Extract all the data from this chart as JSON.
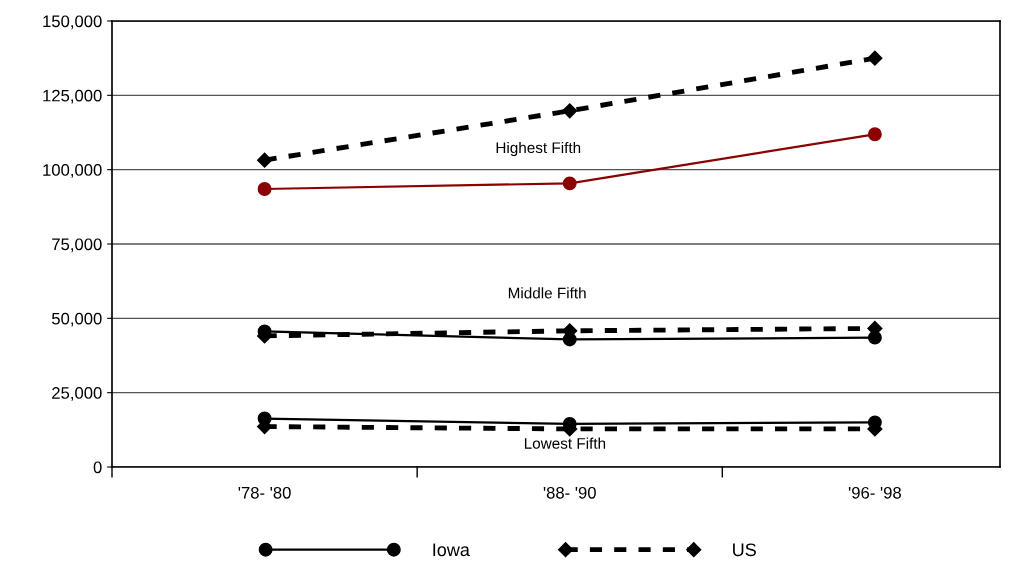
{
  "chart_data": {
    "type": "line",
    "categories": [
      "'78- '80",
      "'88- '90",
      "'96- '98"
    ],
    "series": [
      {
        "name": "Iowa",
        "color": "#000000",
        "marker": "circle",
        "line_style": "solid",
        "values": [
          16300,
          14500,
          15000
        ]
      },
      {
        "name": "US",
        "color": "#000000",
        "marker": "diamond",
        "line_style": "dashed",
        "values": [
          13600,
          12800,
          12800
        ]
      },
      {
        "color": "#000000",
        "marker": "circle",
        "line_style": "solid",
        "values": [
          45600,
          42900,
          43500
        ]
      },
      {
        "color": "#000000",
        "marker": "diamond",
        "line_style": "dashed",
        "values": [
          44100,
          45800,
          46600
        ]
      },
      {
        "color": "#8b0000",
        "marker": "circle",
        "line_style": "solid",
        "values": [
          93500,
          95400,
          111900
        ]
      },
      {
        "color": "#000000",
        "marker": "diamond",
        "line_style": "dashed",
        "values": [
          103200,
          119800,
          137500
        ]
      }
    ],
    "ylim": [
      0,
      150000
    ],
    "yticks": [
      {
        "value": 0,
        "label": "0"
      },
      {
        "value": 25000,
        "label": "25,000"
      },
      {
        "value": 50000,
        "label": "50,000"
      },
      {
        "value": 75000,
        "label": "75,000"
      },
      {
        "value": 100000,
        "label": "100,000"
      },
      {
        "value": 125000,
        "label": "125,000"
      },
      {
        "value": 150000,
        "label": "150,000"
      }
    ],
    "annotations": [
      "Highest Fifth",
      "Middle Fifth",
      "Lowest Fifth"
    ],
    "grid": "y",
    "legend": "bottom"
  }
}
